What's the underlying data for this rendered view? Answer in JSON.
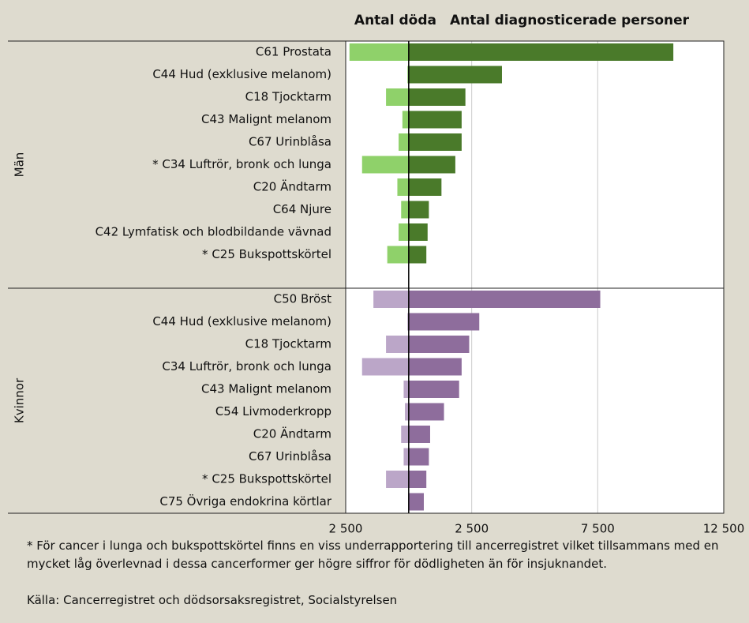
{
  "chart_data": {
    "type": "bar",
    "orientation": "horizontal",
    "series": [
      {
        "name": "Antal döda",
        "colors": [
          "#8fd16a",
          "#bba6c8"
        ]
      },
      {
        "name": "Antal diagnosticerade personer",
        "colors": [
          "#4a7a2a",
          "#8e6d9c"
        ]
      }
    ],
    "groups": [
      {
        "name": "Män",
        "categories": [
          "C61 Prostata",
          "C44 Hud (exklusive melanom)",
          "C18 Tjocktarm",
          "C43 Malignt melanom",
          "C67 Urinblåsa",
          "* C34 Luftrör, bronk och lunga",
          "C20 Ändtarm",
          "C64 Njure",
          "C42 Lymfatisk och blodbildande vävnad",
          "* C25 Bukspottskörtel"
        ],
        "values": [
          [
            -2350,
            -50,
            -900,
            -250,
            -400,
            -1850,
            -450,
            -300,
            -400,
            -850
          ],
          [
            10500,
            3700,
            2250,
            2100,
            2100,
            1850,
            1300,
            800,
            750,
            700
          ]
        ]
      },
      {
        "name": "Kvinnor",
        "categories": [
          "C50 Bröst",
          "C44 Hud (exklusive melanom)",
          "C18 Tjocktarm",
          "C34 Luftrör, bronk och lunga",
          "C43 Malignt melanom",
          "C54 Livmoderkropp",
          "C20 Ändtarm",
          "C67 Urinblåsa",
          "* C25 Bukspottskörtel",
          "C75 Övriga endokrina körtlar"
        ],
        "values": [
          [
            -1400,
            -50,
            -900,
            -1850,
            -200,
            -150,
            -300,
            -200,
            -900,
            -20
          ],
          [
            7600,
            2800,
            2400,
            2100,
            2000,
            1400,
            850,
            800,
            700,
            600
          ]
        ]
      }
    ],
    "xlim": [
      -2500,
      12500
    ],
    "xticks": [
      {
        "value": -2500,
        "label": "2 500"
      },
      {
        "value": 2500,
        "label": "2 500"
      },
      {
        "value": 7500,
        "label": "7 500"
      },
      {
        "value": 12500,
        "label": "12 500"
      }
    ],
    "grid": true,
    "footnote": "* För cancer i lunga och bukspottskörtel finns en viss underrapportering till ancerregistret vilket tillsammans med en mycket låg överlevnad i dessa cancerformer ger högre siffror för dödligheten än för insjuknandet.",
    "source": "Källa: Cancerregistret och dödsorsaksregistret, Socialstyrelsen"
  }
}
